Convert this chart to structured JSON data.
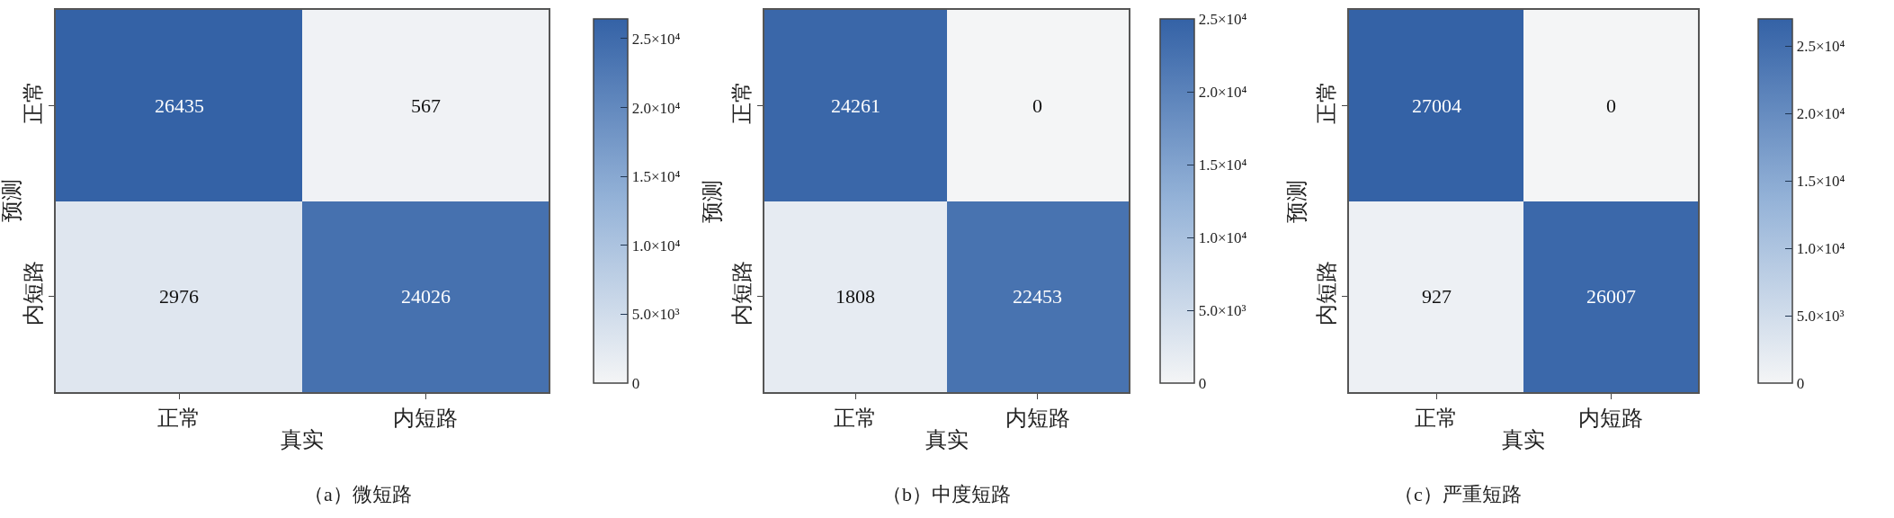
{
  "chart_data": [
    {
      "type": "heatmap",
      "title": "（a）微短路",
      "xlabel": "真实",
      "ylabel": "预测",
      "categories": [
        "正常",
        "内短路"
      ],
      "y_categories": [
        "正常",
        "内短路"
      ],
      "cells": [
        [
          26435,
          567
        ],
        [
          2976,
          24026
        ]
      ],
      "data_labels": true,
      "clim": [
        0,
        26435
      ],
      "cticks": [
        0,
        {
          "value": 5000,
          "label": "5.0×10³"
        },
        {
          "value": 10000,
          "label": "1.0×10⁴"
        },
        {
          "value": 15000,
          "label": "1.5×10⁴"
        },
        {
          "value": 20000,
          "label": "2.0×10⁴"
        },
        {
          "value": 25000,
          "label": "2.5×10⁴"
        }
      ]
    },
    {
      "type": "heatmap",
      "title": "（b）中度短路",
      "xlabel": "真实",
      "ylabel": "预测",
      "categories": [
        "正常",
        "内短路"
      ],
      "y_categories": [
        "正常",
        "内短路"
      ],
      "cells": [
        [
          24261,
          0
        ],
        [
          1808,
          22453
        ]
      ],
      "data_labels": true,
      "clim": [
        0,
        25000
      ],
      "cticks": [
        0,
        {
          "value": 5000,
          "label": "5.0×10³"
        },
        {
          "value": 10000,
          "label": "1.0×10⁴"
        },
        {
          "value": 15000,
          "label": "1.5×10⁴"
        },
        {
          "value": 20000,
          "label": "2.0×10⁴"
        },
        {
          "value": 25000,
          "label": "2.5×10⁴"
        }
      ]
    },
    {
      "type": "heatmap",
      "title": "（c）严重短路",
      "xlabel": "真实",
      "ylabel": "预测",
      "categories": [
        "正常",
        "内短路"
      ],
      "y_categories": [
        "正常",
        "内短路"
      ],
      "cells": [
        [
          27004,
          0
        ],
        [
          927,
          26007
        ]
      ],
      "data_labels": true,
      "clim": [
        0,
        27004
      ],
      "cticks": [
        0,
        {
          "value": 5000,
          "label": "5.0×10³"
        },
        {
          "value": 10000,
          "label": "1.0×10⁴"
        },
        {
          "value": 15000,
          "label": "1.5×10⁴"
        },
        {
          "value": 20000,
          "label": "2.0×10⁴"
        },
        {
          "value": 25000,
          "label": "2.5×10⁴"
        }
      ]
    }
  ]
}
